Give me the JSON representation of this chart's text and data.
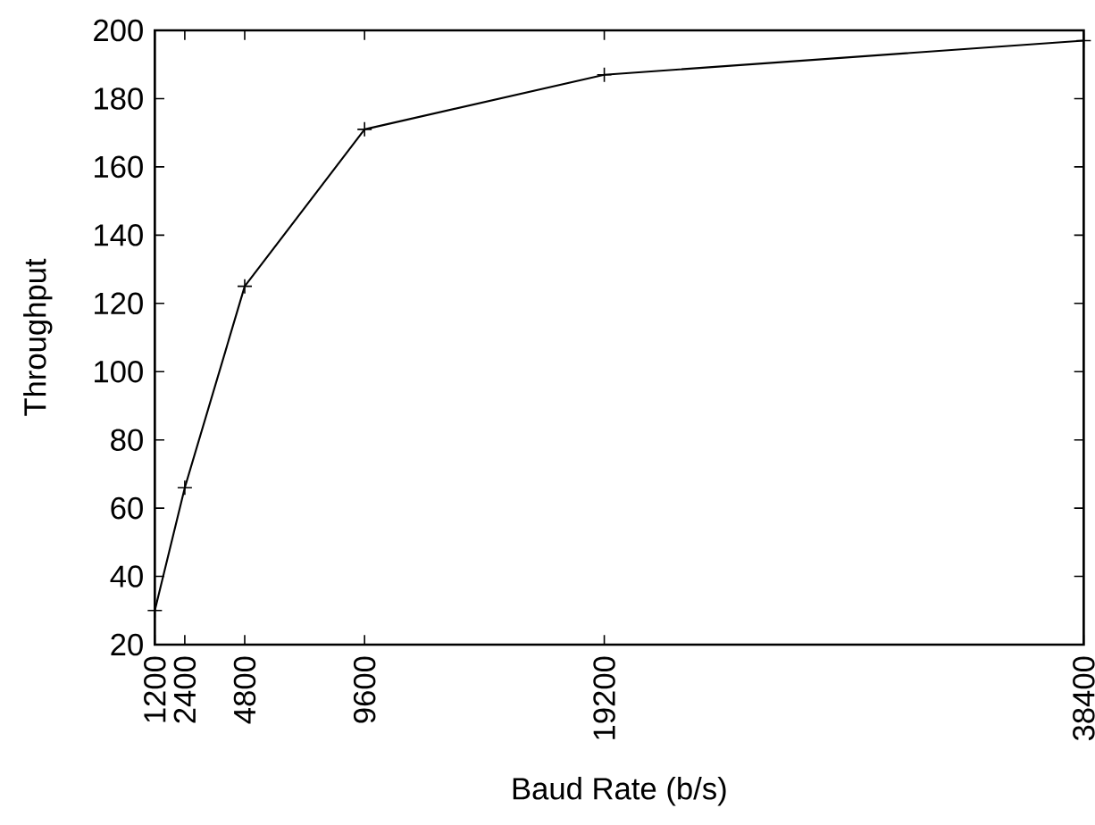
{
  "chart_data": {
    "type": "line",
    "xlabel": "Baud Rate (b/s)",
    "ylabel": "Throughput",
    "x": [
      1200,
      2400,
      4800,
      9600,
      19200,
      38400
    ],
    "series": [
      {
        "color": "#000000",
        "values": [
          30,
          66,
          125,
          171,
          187,
          197
        ]
      }
    ],
    "xlim": [
      1200,
      38400
    ],
    "xticks": [
      1200,
      2400,
      4800,
      9600,
      19200,
      38400
    ],
    "ylim": [
      20,
      200
    ],
    "yticks": [
      20,
      40,
      60,
      80,
      100,
      120,
      140,
      160,
      180,
      200
    ],
    "marker": "cross",
    "line_style": "solid"
  }
}
